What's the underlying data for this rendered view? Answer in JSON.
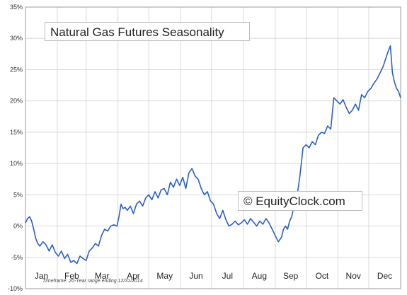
{
  "chart_data": {
    "type": "line",
    "title": "Natural Gas Futures Seasonality",
    "watermark": "© EquityClock.com",
    "timeframe_note": "Timeframe: 20-Year range ending 12/31/2014",
    "xlabel": "",
    "ylabel": "",
    "ylim": [
      -10,
      35
    ],
    "y_ticks": [
      "-10%",
      "-5%",
      "0%",
      "5%",
      "10%",
      "15%",
      "20%",
      "25%",
      "30%",
      "35%"
    ],
    "y_tick_values": [
      -10,
      -5,
      0,
      5,
      10,
      15,
      20,
      25,
      30,
      35
    ],
    "x_unit": "day of year",
    "xlim": [
      1,
      366
    ],
    "months": [
      "Jan",
      "Feb",
      "Mar",
      "Apr",
      "May",
      "Jun",
      "Jul",
      "Aug",
      "Sep",
      "Oct",
      "Nov",
      "Dec"
    ],
    "grid": true,
    "line_color": "#2b5fc4",
    "series": [
      {
        "x": [
          1,
          3,
          5,
          7,
          9,
          11,
          13,
          15,
          18,
          21,
          24,
          27,
          30,
          33,
          36,
          39,
          42,
          45,
          48,
          51,
          54,
          57,
          60,
          63,
          66,
          69,
          72,
          75,
          78,
          81,
          84,
          87,
          90,
          92,
          94,
          96,
          98,
          100,
          103,
          106,
          109,
          112,
          115,
          118,
          121,
          124,
          127,
          130,
          133,
          136,
          139,
          142,
          145,
          148,
          151,
          154,
          157,
          160,
          163,
          166,
          169,
          172,
          175,
          178,
          181,
          184,
          187,
          190,
          193,
          196,
          199,
          202,
          205,
          208,
          211,
          214,
          217,
          220,
          223,
          226,
          229,
          232,
          235,
          238,
          241,
          244,
          247,
          250,
          252,
          254,
          256,
          258,
          260,
          262,
          265,
          268,
          271,
          274,
          277,
          280,
          283,
          286,
          289,
          292,
          295,
          298,
          301,
          304,
          307,
          310,
          313,
          316,
          319,
          322,
          325,
          328,
          331,
          334,
          337,
          340,
          343,
          346,
          349,
          352,
          354,
          356,
          358,
          360,
          362,
          364,
          366
        ],
        "values": [
          0.5,
          1.2,
          1.5,
          0.8,
          -0.5,
          -2.0,
          -2.8,
          -3.2,
          -2.5,
          -3.0,
          -4.0,
          -3.0,
          -4.2,
          -4.8,
          -4.0,
          -5.2,
          -4.5,
          -5.8,
          -5.5,
          -6.0,
          -4.8,
          -5.2,
          -5.5,
          -4.0,
          -3.5,
          -2.8,
          -3.2,
          -1.5,
          -0.5,
          -0.8,
          0.0,
          0.2,
          0.0,
          1.5,
          3.5,
          2.8,
          3.0,
          2.5,
          3.2,
          2.0,
          3.5,
          4.0,
          3.2,
          4.5,
          5.0,
          4.2,
          5.5,
          4.5,
          5.8,
          6.0,
          5.0,
          7.0,
          6.2,
          7.5,
          6.5,
          7.8,
          6.0,
          8.5,
          9.2,
          8.0,
          7.5,
          6.0,
          5.0,
          5.5,
          4.0,
          3.5,
          2.0,
          1.2,
          2.5,
          1.0,
          0.0,
          0.3,
          0.8,
          0.2,
          0.5,
          1.0,
          0.3,
          1.2,
          0.6,
          0.0,
          0.8,
          0.3,
          1.2,
          0.5,
          -0.5,
          -1.5,
          -2.5,
          -1.8,
          -0.5,
          0.0,
          -0.5,
          0.8,
          1.5,
          3.0,
          4.5,
          8.0,
          12.5,
          13.0,
          12.5,
          13.5,
          13.0,
          14.5,
          15.0,
          14.8,
          16.0,
          15.5,
          20.5,
          20.0,
          19.5,
          20.2,
          19.0,
          18.0,
          18.5,
          19.5,
          18.5,
          21.0,
          20.5,
          21.5,
          22.0,
          22.8,
          23.5,
          24.5,
          25.5,
          27.0,
          28.0,
          28.8,
          24.5,
          23.0,
          22.0,
          21.5,
          20.5
        ]
      }
    ]
  }
}
